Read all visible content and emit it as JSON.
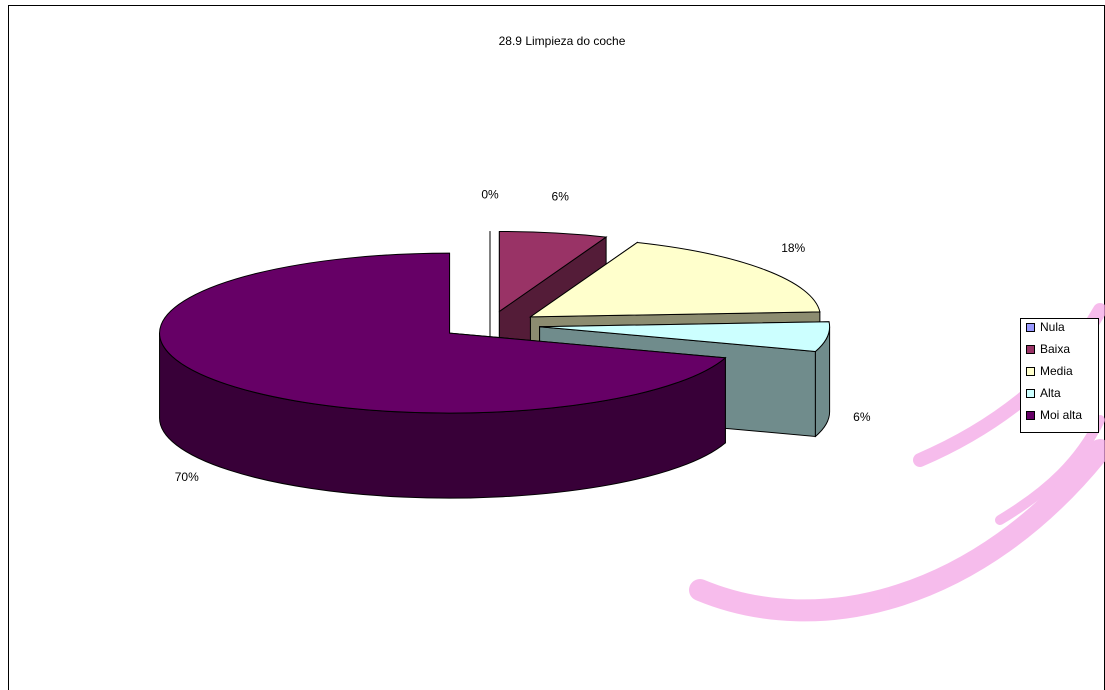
{
  "chart_data": {
    "type": "pie3d",
    "title": "28.9 Limpieza do coche",
    "categories": [
      "Nula",
      "Baixa",
      "Media",
      "Alta",
      "Moi alta"
    ],
    "values": [
      0,
      6,
      18,
      6,
      70
    ],
    "value_labels": [
      "0%",
      "6%",
      "18%",
      "6%",
      "70%"
    ],
    "colors": [
      "#9999ff",
      "#993366",
      "#ffffcc",
      "#ccffff",
      "#660066"
    ],
    "legend": "right"
  }
}
